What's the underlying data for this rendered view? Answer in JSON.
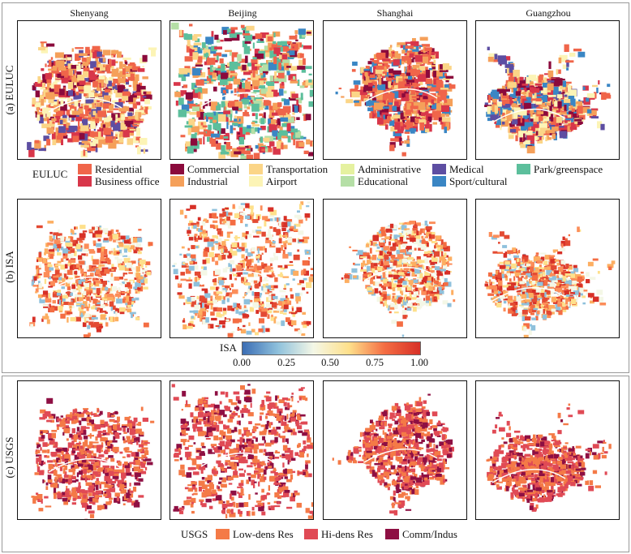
{
  "cities": [
    "Shenyang",
    "Beijing",
    "Shanghai",
    "Guangzhou"
  ],
  "rows": {
    "euluc": "(a) EULUC",
    "isa": "(b) ISA",
    "usgs": "(c) USGS"
  },
  "euluc_legend": {
    "title": "EULUC",
    "items": [
      {
        "label": "Residential",
        "color": "#f0654a"
      },
      {
        "label": "Business office",
        "color": "#d8364a"
      },
      {
        "label": "Commercial",
        "color": "#8b0a3c"
      },
      {
        "label": "Industrial",
        "color": "#f5a05a"
      },
      {
        "label": "Transportation",
        "color": "#fbd587"
      },
      {
        "label": "Airport",
        "color": "#fcf4b6"
      },
      {
        "label": "Administrative",
        "color": "#e5f1a0"
      },
      {
        "label": "Educational",
        "color": "#b5dfa6"
      },
      {
        "label": "Medical",
        "color": "#5d4ea2"
      },
      {
        "label": "Sport/cultural",
        "color": "#3a86c4"
      },
      {
        "label": "Park/greenspace",
        "color": "#5cbf9c"
      }
    ]
  },
  "isa_legend": {
    "title": "ISA",
    "ticks": [
      "0.00",
      "0.25",
      "0.50",
      "0.75",
      "1.00"
    ]
  },
  "usgs_legend": {
    "title": "USGS",
    "items": [
      {
        "label": "Low-dens Res",
        "color": "#f47a47"
      },
      {
        "label": "Hi-dens Res",
        "color": "#e04a55"
      },
      {
        "label": "Comm/Indus",
        "color": "#8e0f43"
      }
    ]
  }
}
